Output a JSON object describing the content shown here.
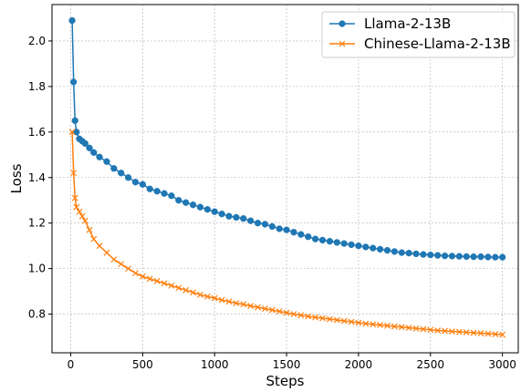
{
  "chart_data": {
    "type": "line",
    "title": "",
    "xlabel": "Steps",
    "ylabel": "Loss",
    "xlim": [
      -130,
      3110
    ],
    "ylim": [
      0.63,
      2.16
    ],
    "xticks": [
      0,
      500,
      1000,
      1500,
      2000,
      2500,
      3000
    ],
    "yticks": [
      0.8,
      1.0,
      1.2,
      1.4,
      1.6,
      1.8,
      2.0
    ],
    "grid": true,
    "legend_position": "top-right",
    "series": [
      {
        "name": "Llama-2-13B",
        "color": "#1f77b4",
        "marker": "circle",
        "x": [
          10,
          20,
          30,
          40,
          60,
          80,
          100,
          130,
          160,
          200,
          250,
          300,
          350,
          400,
          450,
          500,
          550,
          600,
          650,
          700,
          750,
          800,
          850,
          900,
          950,
          1000,
          1050,
          1100,
          1150,
          1200,
          1250,
          1300,
          1350,
          1400,
          1450,
          1500,
          1550,
          1600,
          1650,
          1700,
          1750,
          1800,
          1850,
          1900,
          1950,
          2000,
          2050,
          2100,
          2150,
          2200,
          2250,
          2300,
          2350,
          2400,
          2450,
          2500,
          2550,
          2600,
          2650,
          2700,
          2750,
          2800,
          2850,
          2900,
          2950,
          3000
        ],
        "y": [
          2.09,
          1.82,
          1.65,
          1.6,
          1.57,
          1.56,
          1.55,
          1.53,
          1.51,
          1.49,
          1.47,
          1.44,
          1.42,
          1.4,
          1.38,
          1.37,
          1.35,
          1.34,
          1.33,
          1.32,
          1.3,
          1.29,
          1.28,
          1.27,
          1.26,
          1.25,
          1.24,
          1.23,
          1.225,
          1.22,
          1.21,
          1.2,
          1.195,
          1.185,
          1.175,
          1.17,
          1.16,
          1.15,
          1.14,
          1.13,
          1.125,
          1.12,
          1.115,
          1.11,
          1.105,
          1.1,
          1.095,
          1.09,
          1.085,
          1.08,
          1.075,
          1.07,
          1.068,
          1.065,
          1.062,
          1.06,
          1.058,
          1.056,
          1.055,
          1.054,
          1.053,
          1.052,
          1.052,
          1.051,
          1.05,
          1.05
        ]
      },
      {
        "name": "Chinese-Llama-2-13B",
        "color": "#ff7f0e",
        "marker": "x",
        "x": [
          10,
          20,
          30,
          40,
          60,
          80,
          100,
          130,
          160,
          200,
          250,
          300,
          350,
          400,
          450,
          500,
          550,
          600,
          650,
          700,
          750,
          800,
          850,
          900,
          950,
          1000,
          1050,
          1100,
          1150,
          1200,
          1250,
          1300,
          1350,
          1400,
          1450,
          1500,
          1550,
          1600,
          1650,
          1700,
          1750,
          1800,
          1850,
          1900,
          1950,
          2000,
          2050,
          2100,
          2150,
          2200,
          2250,
          2300,
          2350,
          2400,
          2450,
          2500,
          2550,
          2600,
          2650,
          2700,
          2750,
          2800,
          2850,
          2900,
          2950,
          3000
        ],
        "y": [
          1.6,
          1.42,
          1.31,
          1.27,
          1.25,
          1.23,
          1.21,
          1.17,
          1.13,
          1.1,
          1.07,
          1.04,
          1.02,
          1.0,
          0.98,
          0.965,
          0.955,
          0.945,
          0.935,
          0.925,
          0.915,
          0.905,
          0.895,
          0.885,
          0.877,
          0.87,
          0.862,
          0.855,
          0.848,
          0.843,
          0.836,
          0.83,
          0.824,
          0.818,
          0.812,
          0.806,
          0.8,
          0.795,
          0.79,
          0.786,
          0.782,
          0.778,
          0.774,
          0.77,
          0.766,
          0.762,
          0.758,
          0.755,
          0.752,
          0.749,
          0.746,
          0.743,
          0.74,
          0.737,
          0.734,
          0.731,
          0.728,
          0.726,
          0.724,
          0.722,
          0.72,
          0.718,
          0.716,
          0.714,
          0.712,
          0.71
        ]
      }
    ]
  }
}
